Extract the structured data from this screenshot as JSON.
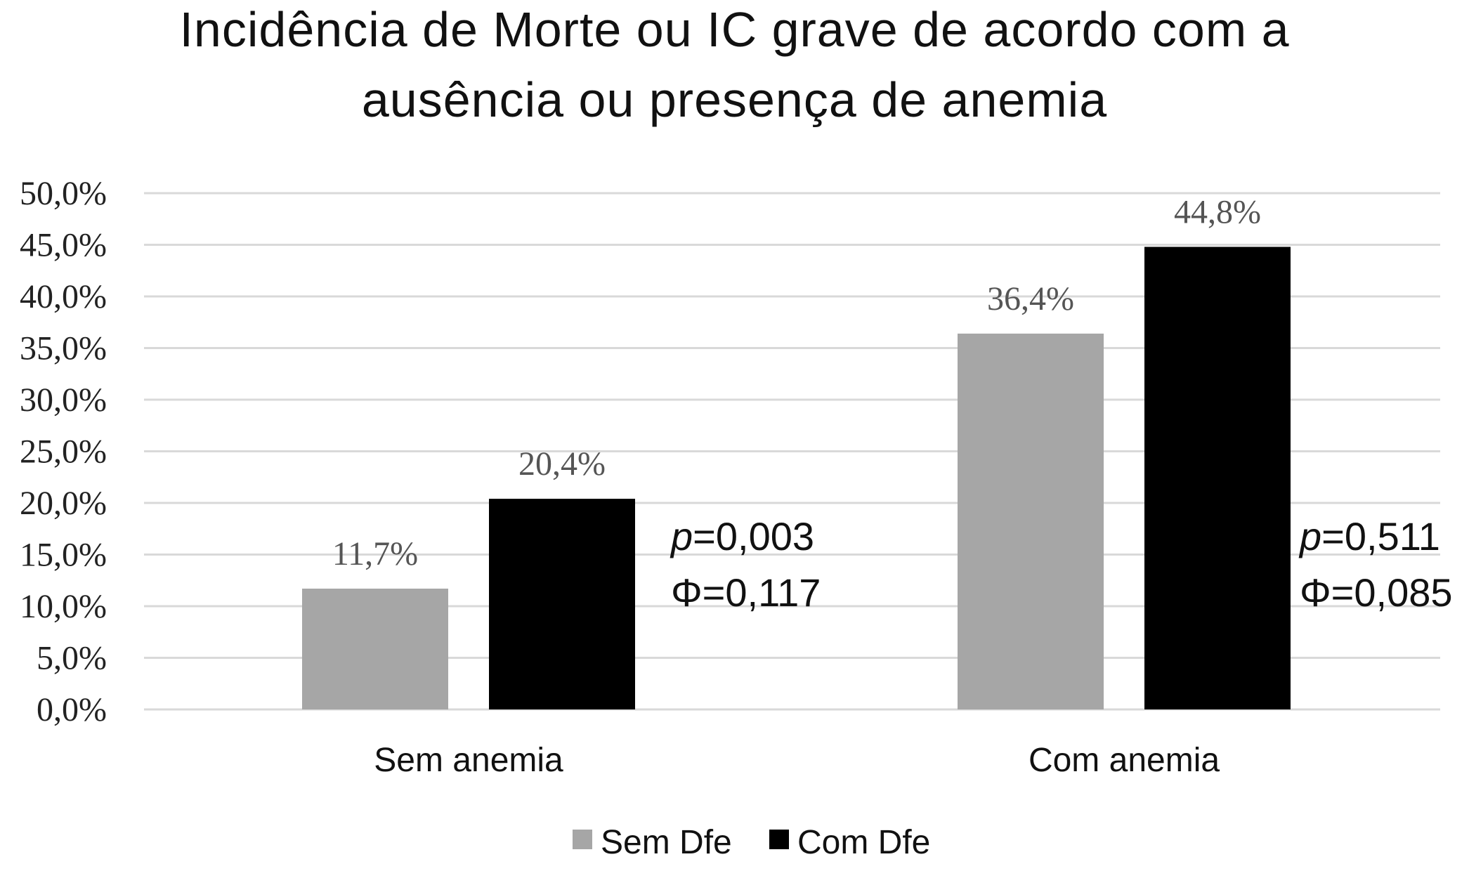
{
  "chart_data": {
    "type": "bar",
    "title_lines": [
      "Incidência de Morte ou IC grave de acordo com a",
      "ausência ou presença de anemia"
    ],
    "categories": [
      "Sem anemia",
      "Com anemia"
    ],
    "series": [
      {
        "name": "Sem Dfe",
        "color": "#a6a6a6",
        "values": [
          11.7,
          36.4
        ],
        "labels": [
          "11,7%",
          "36,4%"
        ]
      },
      {
        "name": "Com Dfe",
        "color": "#000000",
        "values": [
          20.4,
          44.8
        ],
        "labels": [
          "20,4%",
          "44,8%"
        ]
      }
    ],
    "ylim": [
      0,
      50
    ],
    "yticks": [
      "0,0%",
      "5,0%",
      "10,0%",
      "15,0%",
      "20,0%",
      "25,0%",
      "30,0%",
      "35,0%",
      "40,0%",
      "45,0%",
      "50,0%"
    ],
    "grid": true,
    "legend_position": "bottom",
    "annotations": [
      {
        "category": "Sem anemia",
        "p_symbol": "p",
        "p_value": "=0,003",
        "phi": "Φ=0,117"
      },
      {
        "category": "Com anemia",
        "p_symbol": "p",
        "p_value": "=0,511",
        "phi": "Φ=0,085"
      }
    ]
  }
}
